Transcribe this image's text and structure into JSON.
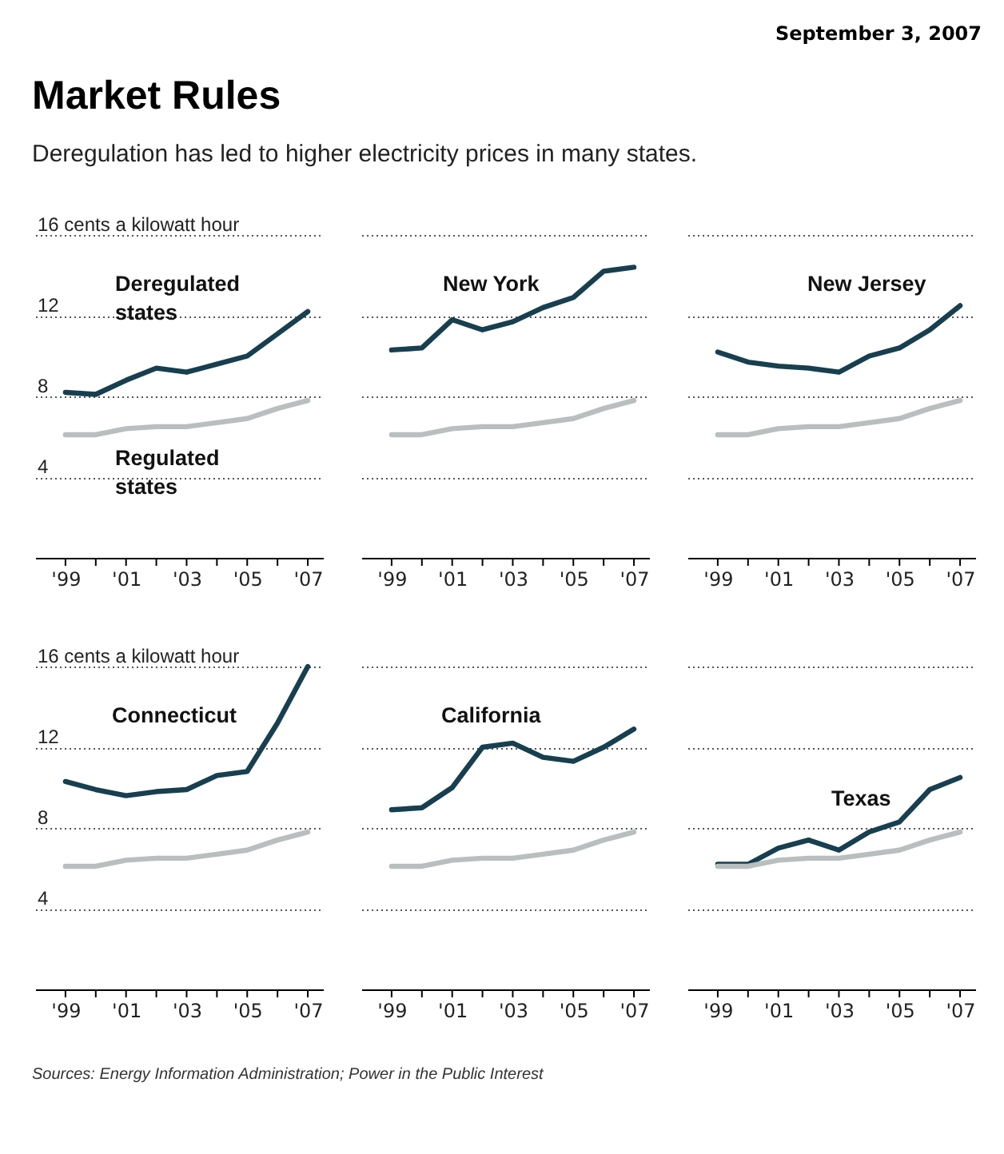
{
  "chart_data": [
    {
      "type": "line",
      "title": "Market Rules",
      "subtitle": "Deregulation has led to higher electricity prices in many states.",
      "annotations": [
        "September 3, 2007"
      ],
      "x": [
        1999,
        2000,
        2001,
        2002,
        2003,
        2004,
        2005,
        2006,
        2007
      ],
      "xlim": [
        1998,
        2007.5
      ],
      "xticks": [
        {
          "value": 1999,
          "label": "'99"
        },
        {
          "value": 2000,
          "label": null
        },
        {
          "value": 2001,
          "label": "'01"
        },
        {
          "value": 2002,
          "label": null
        },
        {
          "value": 2003,
          "label": "'03"
        },
        {
          "value": 2004,
          "label": null
        },
        {
          "value": 2005,
          "label": "'05"
        },
        {
          "value": 2006,
          "label": null
        },
        {
          "value": 2007,
          "label": "'07"
        }
      ],
      "ylim": [
        0,
        16
      ],
      "yticks": [
        {
          "value": 16,
          "label": "16 cents a kilowatt hour"
        },
        12,
        8,
        4
      ],
      "grid": "y",
      "series": [
        {
          "name": "Deregulated states",
          "color": "#173f4f",
          "values": [
            8.2,
            8.1,
            8.8,
            9.4,
            9.2,
            9.6,
            10.0,
            11.1,
            12.2
          ]
        },
        {
          "name": "Regulated states",
          "color": "#b9bebf",
          "values": [
            6.1,
            6.1,
            6.4,
            6.5,
            6.5,
            6.7,
            6.9,
            7.4,
            7.8
          ]
        }
      ]
    },
    {
      "type": "line",
      "x": [
        1999,
        2000,
        2001,
        2002,
        2003,
        2004,
        2005,
        2006,
        2007
      ],
      "xlim": [
        1998,
        2007.5
      ],
      "xticks": [
        {
          "value": 1999,
          "label": "'99"
        },
        {
          "value": 2000,
          "label": null
        },
        {
          "value": 2001,
          "label": "'01"
        },
        {
          "value": 2002,
          "label": null
        },
        {
          "value": 2003,
          "label": "'03"
        },
        {
          "value": 2004,
          "label": null
        },
        {
          "value": 2005,
          "label": "'05"
        },
        {
          "value": 2006,
          "label": null
        },
        {
          "value": 2007,
          "label": "'07"
        }
      ],
      "ylim": [
        0,
        16
      ],
      "yticks": [
        16,
        12,
        8,
        4
      ],
      "grid": "y",
      "tick_labels": "x",
      "series": [
        {
          "name": "New York",
          "color": "#173f4f",
          "values": [
            10.3,
            10.4,
            11.8,
            11.3,
            11.7,
            12.4,
            12.9,
            14.2,
            14.4
          ]
        },
        {
          "color": "#b9bebf",
          "values": [
            6.1,
            6.1,
            6.4,
            6.5,
            6.5,
            6.7,
            6.9,
            7.4,
            7.8
          ]
        }
      ]
    },
    {
      "type": "line",
      "x": [
        1999,
        2000,
        2001,
        2002,
        2003,
        2004,
        2005,
        2006,
        2007
      ],
      "xlim": [
        1998,
        2007.5
      ],
      "xticks": [
        {
          "value": 1999,
          "label": "'99"
        },
        {
          "value": 2000,
          "label": null
        },
        {
          "value": 2001,
          "label": "'01"
        },
        {
          "value": 2002,
          "label": null
        },
        {
          "value": 2003,
          "label": "'03"
        },
        {
          "value": 2004,
          "label": null
        },
        {
          "value": 2005,
          "label": "'05"
        },
        {
          "value": 2006,
          "label": null
        },
        {
          "value": 2007,
          "label": "'07"
        }
      ],
      "ylim": [
        0,
        16
      ],
      "yticks": [
        16,
        12,
        8,
        4
      ],
      "grid": "y",
      "tick_labels": "x",
      "series": [
        {
          "name": "New Jersey",
          "color": "#173f4f",
          "values": [
            10.2,
            9.7,
            9.5,
            9.4,
            9.2,
            10.0,
            10.4,
            11.3,
            12.5
          ]
        },
        {
          "color": "#b9bebf",
          "values": [
            6.1,
            6.1,
            6.4,
            6.5,
            6.5,
            6.7,
            6.9,
            7.4,
            7.8
          ]
        }
      ]
    },
    {
      "type": "line",
      "x": [
        1999,
        2000,
        2001,
        2002,
        2003,
        2004,
        2005,
        2006,
        2007
      ],
      "xlim": [
        1998,
        2007.5
      ],
      "xticks": [
        {
          "value": 1999,
          "label": "'99"
        },
        {
          "value": 2000,
          "label": null
        },
        {
          "value": 2001,
          "label": "'01"
        },
        {
          "value": 2002,
          "label": null
        },
        {
          "value": 2003,
          "label": "'03"
        },
        {
          "value": 2004,
          "label": null
        },
        {
          "value": 2005,
          "label": "'05"
        },
        {
          "value": 2006,
          "label": null
        },
        {
          "value": 2007,
          "label": "'07"
        }
      ],
      "ylim": [
        0,
        16
      ],
      "yticks": [
        {
          "value": 16,
          "label": "16 cents a kilowatt hour"
        },
        12,
        8,
        4
      ],
      "grid": "y",
      "series": [
        {
          "name": "Connecticut",
          "color": "#173f4f",
          "values": [
            10.3,
            9.9,
            9.6,
            9.8,
            9.9,
            10.6,
            10.8,
            13.2,
            16.0
          ]
        },
        {
          "color": "#b9bebf",
          "values": [
            6.1,
            6.1,
            6.4,
            6.5,
            6.5,
            6.7,
            6.9,
            7.4,
            7.8
          ]
        }
      ]
    },
    {
      "type": "line",
      "x": [
        1999,
        2000,
        2001,
        2002,
        2003,
        2004,
        2005,
        2006,
        2007
      ],
      "xlim": [
        1998,
        2007.5
      ],
      "xticks": [
        {
          "value": 1999,
          "label": "'99"
        },
        {
          "value": 2000,
          "label": null
        },
        {
          "value": 2001,
          "label": "'01"
        },
        {
          "value": 2002,
          "label": null
        },
        {
          "value": 2003,
          "label": "'03"
        },
        {
          "value": 2004,
          "label": null
        },
        {
          "value": 2005,
          "label": "'05"
        },
        {
          "value": 2006,
          "label": null
        },
        {
          "value": 2007,
          "label": "'07"
        }
      ],
      "ylim": [
        0,
        16
      ],
      "yticks": [
        16,
        12,
        8,
        4
      ],
      "grid": "y",
      "tick_labels": "x",
      "series": [
        {
          "name": "California",
          "color": "#173f4f",
          "values": [
            8.9,
            9.0,
            10.0,
            12.0,
            12.2,
            11.5,
            11.3,
            12.0,
            12.9
          ]
        },
        {
          "color": "#b9bebf",
          "values": [
            6.1,
            6.1,
            6.4,
            6.5,
            6.5,
            6.7,
            6.9,
            7.4,
            7.8
          ]
        }
      ]
    },
    {
      "type": "line",
      "annotations": [
        "Sources: Energy Information Administration; Power in the Public Interest"
      ],
      "x": [
        1999,
        2000,
        2001,
        2002,
        2003,
        2004,
        2005,
        2006,
        2007
      ],
      "xlim": [
        1998,
        2007.5
      ],
      "xticks": [
        {
          "value": 1999,
          "label": "'99"
        },
        {
          "value": 2000,
          "label": null
        },
        {
          "value": 2001,
          "label": "'01"
        },
        {
          "value": 2002,
          "label": null
        },
        {
          "value": 2003,
          "label": "'03"
        },
        {
          "value": 2004,
          "label": null
        },
        {
          "value": 2005,
          "label": "'05"
        },
        {
          "value": 2006,
          "label": null
        },
        {
          "value": 2007,
          "label": "'07"
        }
      ],
      "ylim": [
        0,
        16
      ],
      "yticks": [
        16,
        12,
        8,
        4
      ],
      "grid": "y",
      "tick_labels": "x",
      "series": [
        {
          "name": "Texas",
          "color": "#173f4f",
          "values": [
            6.2,
            6.2,
            7.0,
            7.4,
            6.9,
            7.8,
            8.3,
            9.9,
            10.5
          ]
        },
        {
          "color": "#b9bebf",
          "values": [
            6.1,
            6.1,
            6.4,
            6.5,
            6.5,
            6.7,
            6.9,
            7.4,
            7.8
          ]
        }
      ]
    }
  ]
}
